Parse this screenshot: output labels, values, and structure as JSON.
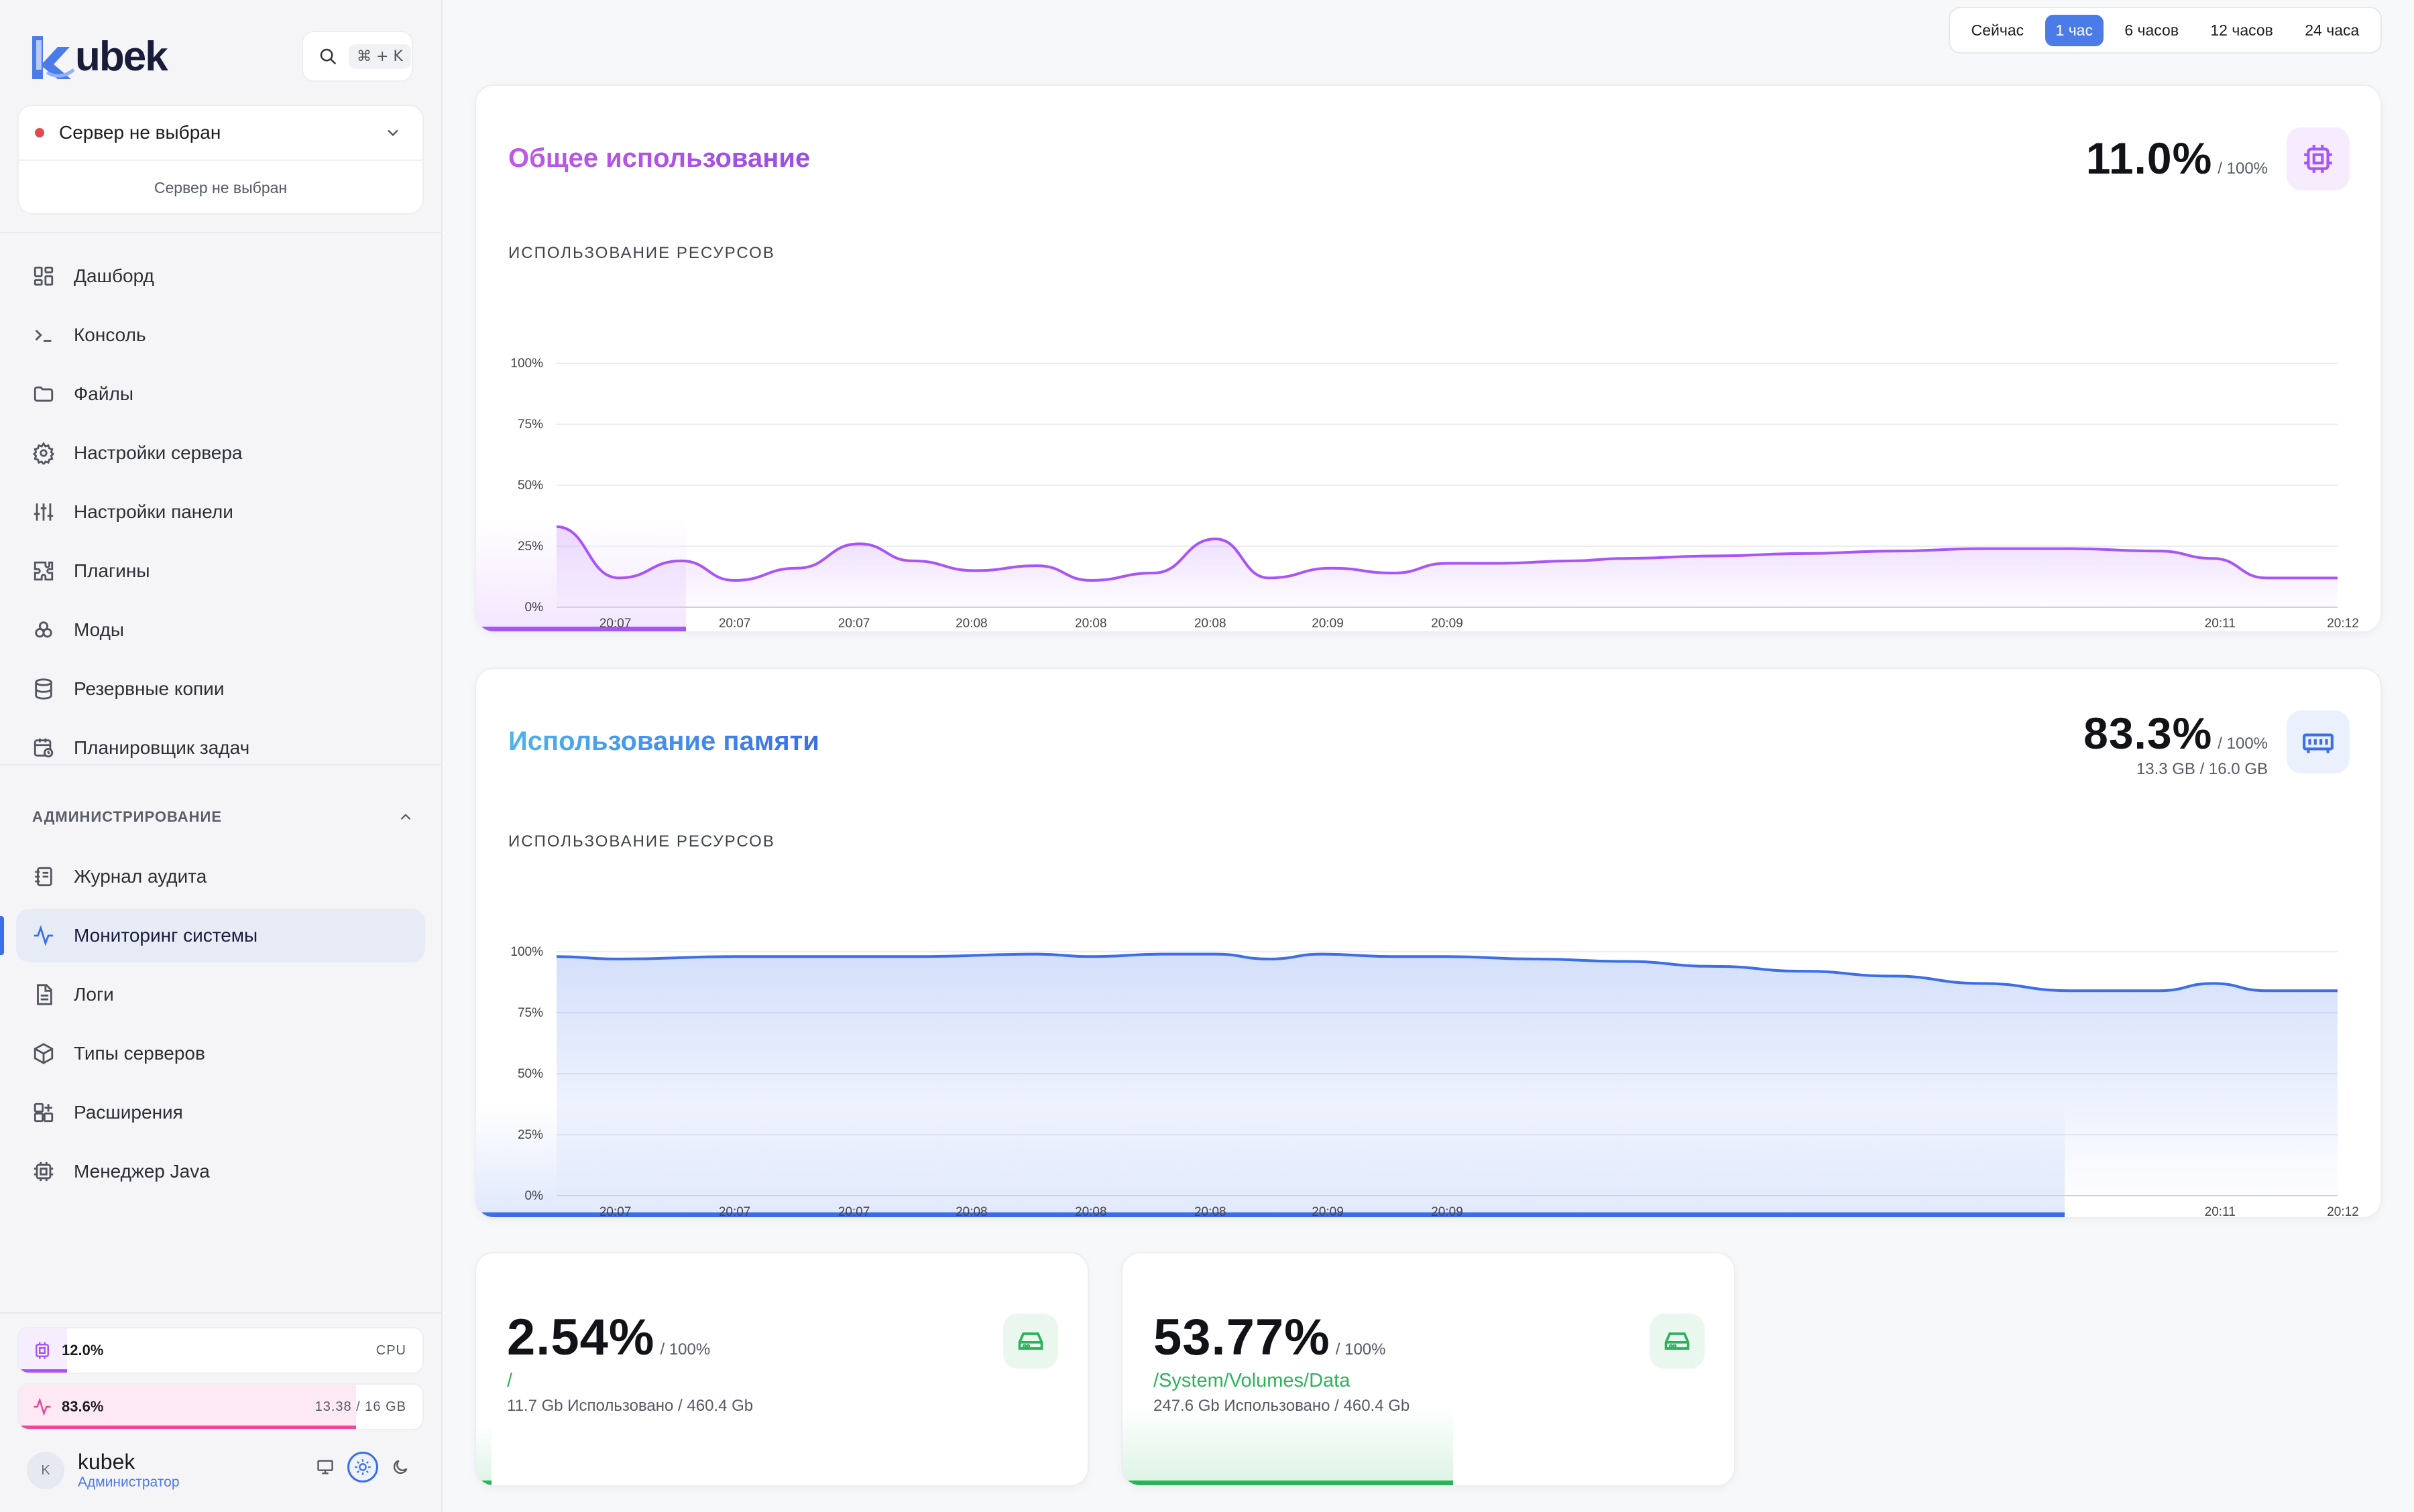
{
  "app": {
    "logo_text": "ubek",
    "search_shortcut": "⌘ + K"
  },
  "server": {
    "selected_label": "Сервер не выбран",
    "sub_label": "Сервер не выбран"
  },
  "nav": {
    "items": [
      {
        "label": "Дашборд",
        "icon": "dashboard-icon"
      },
      {
        "label": "Консоль",
        "icon": "terminal-icon"
      },
      {
        "label": "Файлы",
        "icon": "folder-icon"
      },
      {
        "label": "Настройки сервера",
        "icon": "gear-icon"
      },
      {
        "label": "Настройки панели",
        "icon": "sliders-icon"
      },
      {
        "label": "Плагины",
        "icon": "puzzle-icon"
      },
      {
        "label": "Моды",
        "icon": "cubes-icon"
      },
      {
        "label": "Резервные копии",
        "icon": "database-icon"
      },
      {
        "label": "Планировщик задач",
        "icon": "calendar-clock-icon"
      }
    ],
    "admin_title": "АДМИНИСТРИРОВАНИЕ",
    "admin_items": [
      {
        "label": "Журнал аудита",
        "icon": "audit-log-icon"
      },
      {
        "label": "Мониторинг системы",
        "icon": "activity-icon",
        "active": true
      },
      {
        "label": "Логи",
        "icon": "file-text-icon"
      },
      {
        "label": "Типы серверов",
        "icon": "box-icon"
      },
      {
        "label": "Расширения",
        "icon": "extensions-icon"
      },
      {
        "label": "Менеджер Java",
        "icon": "cpu-icon"
      }
    ]
  },
  "sidebar_stats": {
    "cpu": {
      "value": "12.0%",
      "label": "CPU",
      "fraction": 0.12,
      "color": "#a855f7"
    },
    "ram": {
      "value": "83.6%",
      "label": "13.38 / 16 GB",
      "fraction": 0.836,
      "color": "#ec4899"
    }
  },
  "user": {
    "initial": "K",
    "name": "kubek",
    "role": "Администратор"
  },
  "time_range": {
    "options": [
      "Сейчас",
      "1 час",
      "6 часов",
      "12 часов",
      "24 часа"
    ],
    "selected": "1 час"
  },
  "cpu_card": {
    "title": "Общее использование",
    "value": "11.0%",
    "of": "/ 100%",
    "chart_label": "ИСПОЛЬЗОВАНИЕ РЕСУРСОВ",
    "accent": "#a855f7",
    "bottom_fraction": 0.11
  },
  "mem_card": {
    "title": "Использование памяти",
    "value": "83.3%",
    "of": "/ 100%",
    "sub": "13.3 GB / 16.0 GB",
    "chart_label": "ИСПОЛЬЗОВАНИЕ РЕСУРСОВ",
    "accent": "#3b6ee8",
    "bottom_fraction": 0.833
  },
  "disks": [
    {
      "value": "2.54%",
      "of": "/ 100%",
      "path": "/",
      "usage": "11.7 Gb Использовано / 460.4 Gb",
      "fraction": 0.0254
    },
    {
      "value": "53.77%",
      "of": "/ 100%",
      "path": "/System/Volumes/Data",
      "usage": "247.6 Gb Использовано / 460.4 Gb",
      "fraction": 0.5377
    }
  ],
  "chart_data": [
    {
      "type": "area",
      "title": "Общее использование",
      "ylabel": "ИСПОЛЬЗОВАНИЕ РЕСУРСОВ",
      "ylim": [
        0,
        100
      ],
      "y_ticks": [
        "100%",
        "75%",
        "50%",
        "25%",
        "0%"
      ],
      "x_ticks": [
        "20:07",
        "20:07",
        "20:07",
        "20:08",
        "20:08",
        "20:08",
        "20:09",
        "20:09",
        "20:11",
        "20:12"
      ],
      "x": [
        0,
        0.035,
        0.07,
        0.1,
        0.135,
        0.17,
        0.2,
        0.235,
        0.27,
        0.3,
        0.335,
        0.37,
        0.4,
        0.435,
        0.47,
        0.5,
        0.53,
        0.57,
        0.6,
        0.65,
        0.7,
        0.75,
        0.8,
        0.85,
        0.9,
        0.93,
        0.96,
        1.0
      ],
      "values": [
        33,
        12,
        19,
        11,
        16,
        26,
        19,
        15,
        17,
        11,
        14,
        28,
        12,
        16,
        14,
        18,
        18,
        19,
        20,
        21,
        22,
        23,
        24,
        24,
        23,
        20,
        12,
        12
      ],
      "grid": true
    },
    {
      "type": "area",
      "title": "Использование памяти",
      "ylabel": "ИСПОЛЬЗОВАНИЕ РЕСУРСОВ",
      "ylim": [
        0,
        100
      ],
      "y_ticks": [
        "100%",
        "75%",
        "50%",
        "25%",
        "0%"
      ],
      "x_ticks": [
        "20:07",
        "20:07",
        "20:07",
        "20:08",
        "20:08",
        "20:08",
        "20:09",
        "20:09",
        "20:11",
        "20:12"
      ],
      "x": [
        0,
        0.035,
        0.1,
        0.2,
        0.27,
        0.3,
        0.34,
        0.37,
        0.4,
        0.43,
        0.47,
        0.5,
        0.55,
        0.6,
        0.65,
        0.7,
        0.75,
        0.8,
        0.85,
        0.9,
        0.93,
        0.96,
        1.0
      ],
      "values": [
        98,
        97,
        98,
        98,
        99,
        98,
        99,
        99,
        97,
        99,
        98,
        98,
        97,
        96,
        94,
        92,
        90,
        87,
        84,
        84,
        87,
        84,
        84
      ],
      "grid": true
    }
  ]
}
